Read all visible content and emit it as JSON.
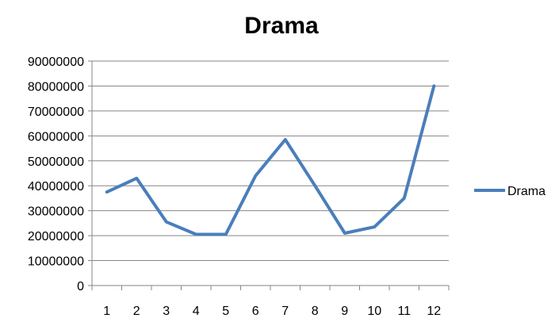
{
  "chart_data": {
    "type": "line",
    "title": "Drama",
    "xlabel": "",
    "ylabel": "",
    "x": [
      "1",
      "2",
      "3",
      "4",
      "5",
      "6",
      "7",
      "8",
      "9",
      "10",
      "11",
      "12"
    ],
    "series": [
      {
        "name": "Drama",
        "color": "#4a7ebb",
        "values": [
          37500000,
          43000000,
          25500000,
          20500000,
          20500000,
          44000000,
          58500000,
          40000000,
          21000000,
          23500000,
          35000000,
          80000000
        ]
      }
    ],
    "ylim": [
      0,
      90000000
    ],
    "yticks": [
      "0",
      "10000000",
      "20000000",
      "30000000",
      "40000000",
      "50000000",
      "60000000",
      "70000000",
      "80000000",
      "90000000"
    ],
    "grid": true,
    "legend_position": "right"
  }
}
